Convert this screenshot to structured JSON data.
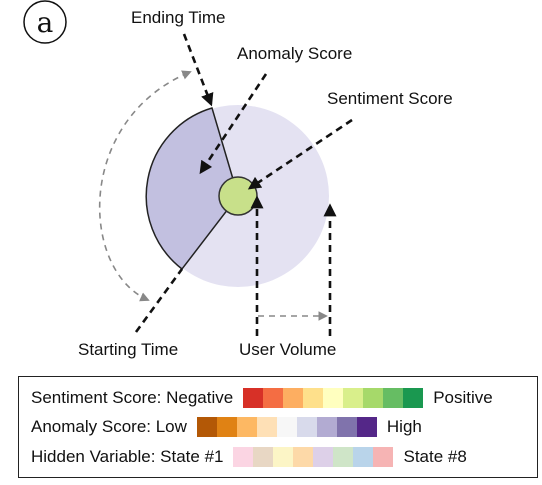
{
  "panel_label": "a",
  "labels": {
    "ending_time": "Ending Time",
    "anomaly_score": "Anomaly Score",
    "sentiment_score": "Sentiment Score",
    "starting_time": "Starting Time",
    "user_volume": "User Volume"
  },
  "colors": {
    "outer_disk": "#e4e2f2",
    "sector": "#c2c0e0",
    "center": "#c8e08a"
  },
  "legend": {
    "sentiment": {
      "label": "Sentiment Score: Negative",
      "end": "Positive",
      "colors": [
        "#d73027",
        "#f46d43",
        "#fdae61",
        "#fee08b",
        "#ffffbf",
        "#d9ef8b",
        "#a6d96a",
        "#66bd63",
        "#1a9850"
      ]
    },
    "anomaly": {
      "label": "Anomaly Score: Low",
      "end": "High",
      "colors": [
        "#b35806",
        "#e08214",
        "#fdb863",
        "#fee0b6",
        "#f7f7f7",
        "#d8daeb",
        "#b2abd2",
        "#8073ac",
        "#542788"
      ]
    },
    "hidden": {
      "label": "Hidden Variable: State #1",
      "end": "State #8",
      "colors": [
        "#fbd5e3",
        "#e8d7c4",
        "#fcf5c6",
        "#fdd9a8",
        "#ddd0e8",
        "#cfe5c8",
        "#b9d4ea",
        "#f6b4b4"
      ]
    }
  }
}
